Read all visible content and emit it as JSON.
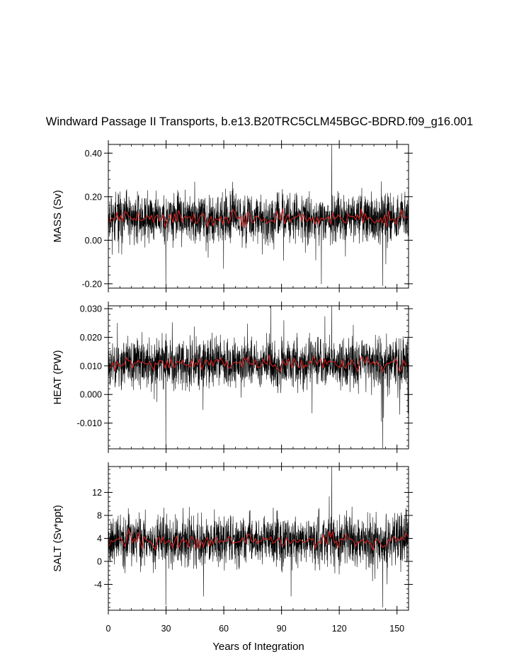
{
  "chart_data": {
    "type": "line",
    "title": "Windward Passage II Transports, b.e13.B20TRC5CLM45BGC-BDRD.f09_g16.001",
    "xlabel": "Years of Integration",
    "xlim": [
      0,
      156
    ],
    "x_ticks": [
      0,
      30,
      60,
      90,
      120,
      150
    ],
    "x_tick_labels": [
      "0",
      "30",
      "60",
      "90",
      "120",
      "150"
    ],
    "grid": false,
    "legend": "none",
    "colors": {
      "monthly": "#000000",
      "annual": "#d62020"
    },
    "panels": [
      {
        "ylabel": "MASS (Sv)",
        "ylim": [
          -0.22,
          0.44
        ],
        "y_ticks": [
          0.4,
          0.2,
          0.0,
          -0.2
        ],
        "y_tick_labels": [
          "0.40",
          "0.20",
          "0.00",
          "-0.20"
        ],
        "mean": 0.1,
        "spread": 0.055,
        "min": -0.21,
        "max": 0.44,
        "annual_mean_range": [
          0.06,
          0.16
        ],
        "seed": 11
      },
      {
        "ylabel": "HEAT (PW)",
        "ylim": [
          -0.019,
          0.031
        ],
        "y_ticks": [
          0.03,
          0.02,
          0.01,
          0.0,
          -0.01
        ],
        "y_tick_labels": [
          "0.030",
          "0.020",
          "0.010",
          "0.000",
          "-0.010"
        ],
        "mean": 0.011,
        "spread": 0.0042,
        "min": -0.019,
        "max": 0.031,
        "annual_mean_range": [
          0.008,
          0.015
        ],
        "seed": 23
      },
      {
        "ylabel": "SALT (Sv*ppt)",
        "ylim": [
          -8.5,
          16.5
        ],
        "y_ticks": [
          12,
          8,
          4,
          0,
          -4
        ],
        "y_tick_labels": [
          "12",
          "8",
          "4",
          "0",
          "-4"
        ],
        "mean": 3.6,
        "spread": 2.1,
        "min": -8.0,
        "max": 16.5,
        "annual_mean_range": [
          2.0,
          6.0
        ],
        "seed": 37
      }
    ]
  }
}
